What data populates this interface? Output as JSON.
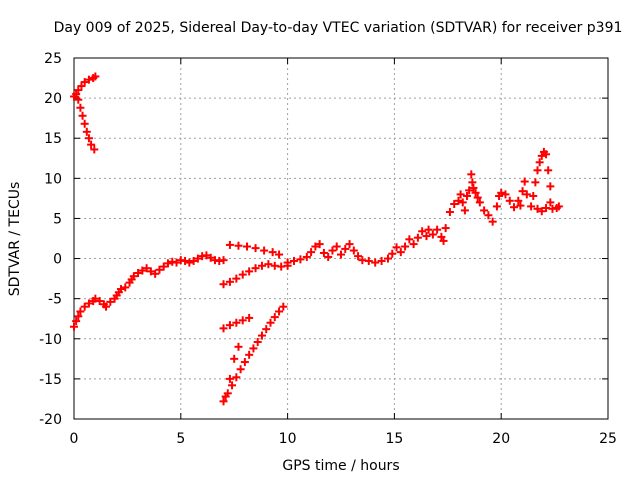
{
  "chart_data": {
    "type": "scatter",
    "title": "Day 009 of 2025, Sidereal Day-to-day VTEC variation (SDTVAR) for receiver p391",
    "xlabel": "GPS time / hours",
    "ylabel": "SDTVAR / TECUs",
    "xlim": [
      0,
      25
    ],
    "ylim": [
      -20,
      25
    ],
    "xticks": [
      0,
      5,
      10,
      15,
      20,
      25
    ],
    "yticks": [
      -20,
      -15,
      -10,
      -5,
      0,
      5,
      10,
      15,
      20,
      25
    ],
    "grid": true,
    "marker": "+",
    "color": "#ff0000",
    "series": [
      {
        "points": [
          [
            0.0,
            20.2
          ],
          [
            0.1,
            20.5
          ],
          [
            0.2,
            19.8
          ],
          [
            0.3,
            18.8
          ],
          [
            0.4,
            17.8
          ],
          [
            0.5,
            16.8
          ],
          [
            0.6,
            15.8
          ],
          [
            0.7,
            15.0
          ],
          [
            0.8,
            14.2
          ],
          [
            0.95,
            13.6
          ],
          [
            0.2,
            21.0
          ],
          [
            0.35,
            21.5
          ],
          [
            0.5,
            22.0
          ],
          [
            0.7,
            22.3
          ],
          [
            0.9,
            22.5
          ],
          [
            1.0,
            22.7
          ],
          [
            0.0,
            -8.5
          ],
          [
            0.1,
            -7.8
          ],
          [
            0.2,
            -7.2
          ],
          [
            0.3,
            -6.6
          ],
          [
            0.5,
            -6.0
          ],
          [
            0.7,
            -5.6
          ],
          [
            0.9,
            -5.3
          ],
          [
            1.0,
            -5.0
          ],
          [
            1.2,
            -5.3
          ],
          [
            1.4,
            -5.7
          ],
          [
            1.5,
            -6.0
          ],
          [
            1.7,
            -5.4
          ],
          [
            1.9,
            -5.0
          ],
          [
            2.0,
            -4.6
          ],
          [
            2.1,
            -4.2
          ],
          [
            2.2,
            -3.8
          ],
          [
            2.4,
            -3.6
          ],
          [
            2.6,
            -3.0
          ],
          [
            2.7,
            -2.6
          ],
          [
            2.8,
            -2.2
          ],
          [
            3.0,
            -1.8
          ],
          [
            3.2,
            -1.5
          ],
          [
            3.4,
            -1.2
          ],
          [
            3.6,
            -1.6
          ],
          [
            3.8,
            -1.9
          ],
          [
            4.0,
            -1.4
          ],
          [
            4.2,
            -1.0
          ],
          [
            4.4,
            -0.6
          ],
          [
            4.6,
            -0.4
          ],
          [
            4.8,
            -0.5
          ],
          [
            5.0,
            -0.2
          ],
          [
            5.2,
            -0.3
          ],
          [
            5.4,
            -0.5
          ],
          [
            5.6,
            -0.3
          ],
          [
            5.8,
            0.0
          ],
          [
            6.0,
            0.3
          ],
          [
            6.2,
            0.4
          ],
          [
            6.4,
            0.1
          ],
          [
            6.6,
            -0.2
          ],
          [
            6.8,
            -0.3
          ],
          [
            7.0,
            -0.2
          ],
          [
            7.0,
            -3.2
          ],
          [
            7.3,
            -2.9
          ],
          [
            7.6,
            -2.5
          ],
          [
            7.9,
            -2.0
          ],
          [
            8.2,
            -1.6
          ],
          [
            8.5,
            -1.2
          ],
          [
            8.8,
            -0.9
          ],
          [
            9.1,
            -0.7
          ],
          [
            9.4,
            -0.9
          ],
          [
            9.7,
            -1.0
          ],
          [
            10.0,
            -0.9
          ],
          [
            7.3,
            1.7
          ],
          [
            7.7,
            1.6
          ],
          [
            8.1,
            1.5
          ],
          [
            8.5,
            1.3
          ],
          [
            8.9,
            1.0
          ],
          [
            9.3,
            0.8
          ],
          [
            9.6,
            0.5
          ],
          [
            7.0,
            -8.7
          ],
          [
            7.3,
            -8.3
          ],
          [
            7.6,
            -8.0
          ],
          [
            7.9,
            -7.7
          ],
          [
            8.2,
            -7.4
          ],
          [
            7.0,
            -17.8
          ],
          [
            7.2,
            -16.8
          ],
          [
            7.4,
            -15.8
          ],
          [
            7.6,
            -14.8
          ],
          [
            7.8,
            -13.8
          ],
          [
            8.0,
            -12.9
          ],
          [
            8.2,
            -12.0
          ],
          [
            8.4,
            -11.2
          ],
          [
            8.6,
            -10.4
          ],
          [
            8.8,
            -9.6
          ],
          [
            9.0,
            -8.8
          ],
          [
            9.2,
            -8.0
          ],
          [
            9.4,
            -7.3
          ],
          [
            9.6,
            -6.6
          ],
          [
            9.8,
            -6.0
          ],
          [
            7.1,
            -17.2
          ],
          [
            7.3,
            -15.0
          ],
          [
            7.5,
            -12.5
          ],
          [
            7.7,
            -11.0
          ],
          [
            10.0,
            -0.5
          ],
          [
            10.3,
            -0.3
          ],
          [
            10.6,
            -0.1
          ],
          [
            10.9,
            0.2
          ],
          [
            11.1,
            0.8
          ],
          [
            11.3,
            1.5
          ],
          [
            11.5,
            1.8
          ],
          [
            11.7,
            0.7
          ],
          [
            11.9,
            0.2
          ],
          [
            12.1,
            1.0
          ],
          [
            12.3,
            1.5
          ],
          [
            12.5,
            0.5
          ],
          [
            12.7,
            1.2
          ],
          [
            12.9,
            1.8
          ],
          [
            13.1,
            1.0
          ],
          [
            13.3,
            0.3
          ],
          [
            13.5,
            -0.2
          ],
          [
            13.8,
            -0.3
          ],
          [
            14.1,
            -0.5
          ],
          [
            14.4,
            -0.3
          ],
          [
            14.7,
            0.0
          ],
          [
            14.9,
            0.6
          ],
          [
            15.1,
            1.4
          ],
          [
            15.3,
            0.8
          ],
          [
            15.5,
            1.5
          ],
          [
            15.7,
            2.4
          ],
          [
            15.9,
            1.8
          ],
          [
            16.1,
            2.6
          ],
          [
            16.3,
            3.4
          ],
          [
            16.5,
            2.8
          ],
          [
            16.6,
            3.6
          ],
          [
            16.8,
            3.0
          ],
          [
            17.0,
            3.6
          ],
          [
            17.2,
            2.7
          ],
          [
            17.3,
            2.2
          ],
          [
            17.4,
            3.8
          ],
          [
            17.6,
            5.8
          ],
          [
            17.8,
            6.8
          ],
          [
            18.0,
            7.2
          ],
          [
            18.1,
            8.0
          ],
          [
            18.2,
            7.0
          ],
          [
            18.3,
            6.0
          ],
          [
            18.4,
            7.8
          ],
          [
            18.5,
            8.5
          ],
          [
            18.6,
            10.5
          ],
          [
            18.65,
            9.5
          ],
          [
            18.7,
            8.8
          ],
          [
            18.8,
            8.2
          ],
          [
            18.9,
            7.6
          ],
          [
            19.0,
            7.0
          ],
          [
            19.2,
            6.0
          ],
          [
            19.4,
            5.4
          ],
          [
            19.6,
            4.6
          ],
          [
            19.8,
            6.5
          ],
          [
            19.9,
            7.8
          ],
          [
            20.0,
            8.2
          ],
          [
            20.2,
            8.0
          ],
          [
            20.4,
            7.2
          ],
          [
            20.6,
            6.4
          ],
          [
            20.8,
            7.2
          ],
          [
            20.9,
            6.6
          ],
          [
            21.0,
            8.4
          ],
          [
            21.1,
            9.6
          ],
          [
            21.2,
            8.0
          ],
          [
            21.4,
            6.5
          ],
          [
            21.5,
            7.8
          ],
          [
            21.6,
            9.5
          ],
          [
            21.7,
            11.0
          ],
          [
            21.8,
            12.0
          ],
          [
            21.9,
            12.8
          ],
          [
            22.0,
            13.3
          ],
          [
            22.1,
            13.0
          ],
          [
            22.2,
            11.0
          ],
          [
            22.3,
            9.0
          ],
          [
            21.7,
            6.2
          ],
          [
            21.9,
            5.9
          ],
          [
            22.1,
            6.3
          ],
          [
            22.3,
            7.0
          ],
          [
            22.4,
            6.2
          ],
          [
            22.6,
            6.3
          ],
          [
            22.7,
            6.5
          ]
        ]
      }
    ]
  }
}
